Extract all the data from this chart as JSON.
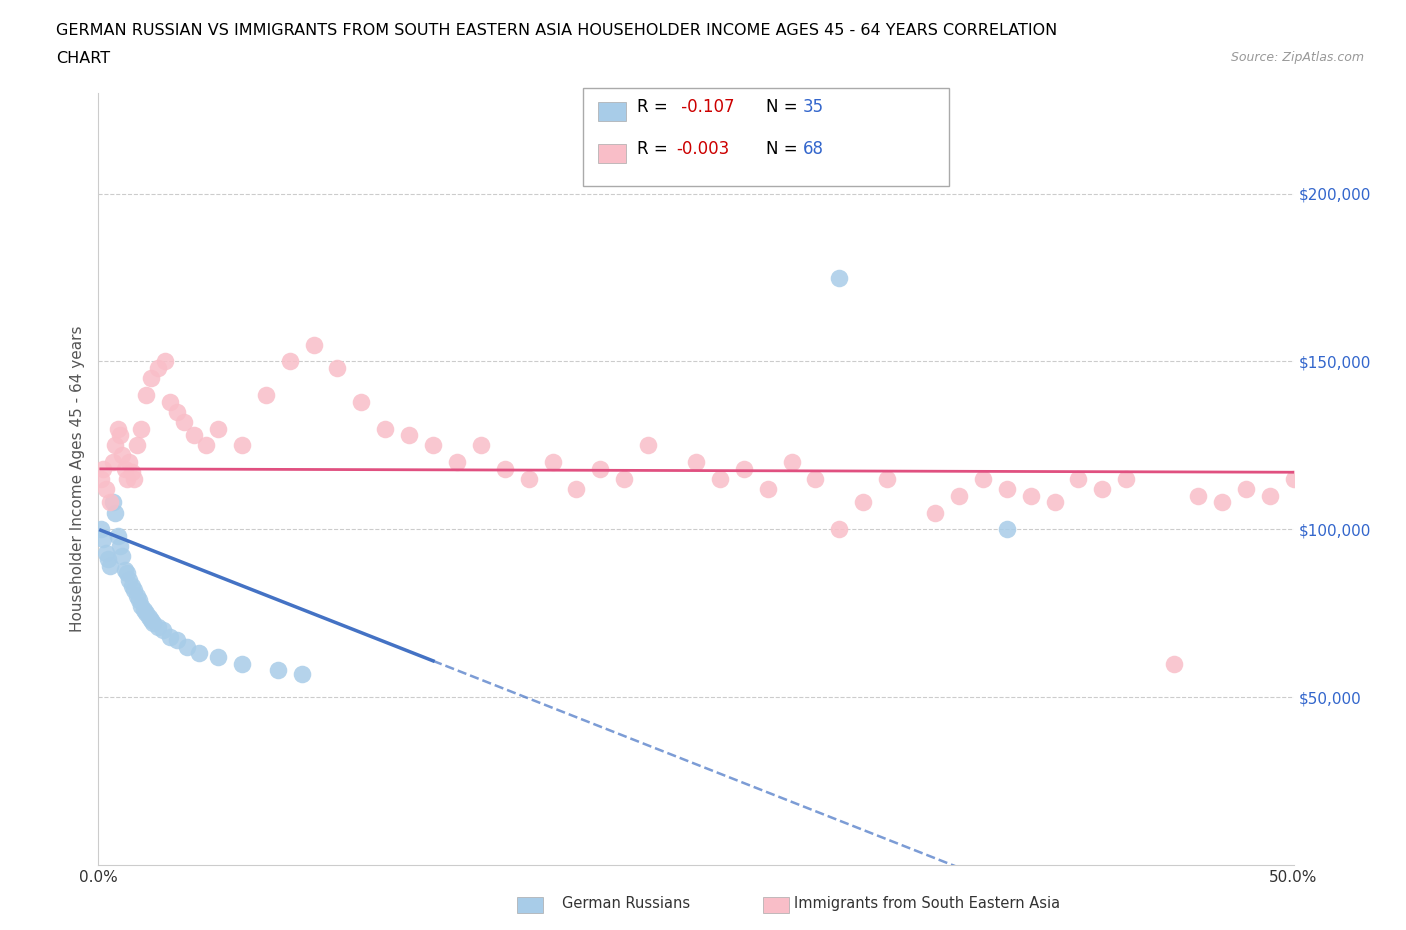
{
  "title_line1": "GERMAN RUSSIAN VS IMMIGRANTS FROM SOUTH EASTERN ASIA HOUSEHOLDER INCOME AGES 45 - 64 YEARS CORRELATION",
  "title_line2": "CHART",
  "source_text": "Source: ZipAtlas.com",
  "ylabel": "Householder Income Ages 45 - 64 years",
  "xlim": [
    0.0,
    0.5
  ],
  "ylim": [
    0,
    230000
  ],
  "yticks": [
    50000,
    100000,
    150000,
    200000
  ],
  "ytick_labels": [
    "$50,000",
    "$100,000",
    "$150,000",
    "$200,000"
  ],
  "xticks": [
    0.0,
    0.1,
    0.2,
    0.3,
    0.4,
    0.5
  ],
  "xtick_labels": [
    "0.0%",
    "",
    "",
    "",
    "",
    "50.0%"
  ],
  "color_blue": "#a8cce8",
  "color_pink": "#f9bec8",
  "color_blue_line": "#4472c4",
  "color_pink_line": "#e05080",
  "grid_color": "#cccccc",
  "blue_x": [
    0.001,
    0.002,
    0.003,
    0.004,
    0.005,
    0.006,
    0.007,
    0.008,
    0.009,
    0.01,
    0.011,
    0.012,
    0.013,
    0.014,
    0.015,
    0.016,
    0.017,
    0.018,
    0.019,
    0.02,
    0.021,
    0.022,
    0.023,
    0.025,
    0.027,
    0.03,
    0.033,
    0.037,
    0.042,
    0.05,
    0.06,
    0.075,
    0.085,
    0.31,
    0.38
  ],
  "blue_y": [
    100000,
    97000,
    93000,
    91000,
    89000,
    108000,
    105000,
    98000,
    95000,
    92000,
    88000,
    87000,
    85000,
    83000,
    82000,
    80000,
    79000,
    77000,
    76000,
    75000,
    74000,
    73000,
    72000,
    71000,
    70000,
    68000,
    67000,
    65000,
    63000,
    62000,
    60000,
    58000,
    57000,
    175000,
    100000
  ],
  "pink_x": [
    0.001,
    0.002,
    0.003,
    0.005,
    0.006,
    0.007,
    0.008,
    0.009,
    0.01,
    0.011,
    0.012,
    0.013,
    0.014,
    0.015,
    0.016,
    0.018,
    0.02,
    0.022,
    0.025,
    0.028,
    0.03,
    0.033,
    0.036,
    0.04,
    0.045,
    0.05,
    0.06,
    0.07,
    0.08,
    0.09,
    0.1,
    0.11,
    0.12,
    0.13,
    0.14,
    0.15,
    0.16,
    0.17,
    0.18,
    0.19,
    0.2,
    0.21,
    0.22,
    0.23,
    0.25,
    0.26,
    0.27,
    0.28,
    0.29,
    0.3,
    0.31,
    0.32,
    0.33,
    0.35,
    0.36,
    0.37,
    0.38,
    0.39,
    0.4,
    0.41,
    0.42,
    0.43,
    0.45,
    0.46,
    0.47,
    0.48,
    0.49,
    0.5
  ],
  "pink_y": [
    115000,
    118000,
    112000,
    108000,
    120000,
    125000,
    130000,
    128000,
    122000,
    118000,
    115000,
    120000,
    117000,
    115000,
    125000,
    130000,
    140000,
    145000,
    148000,
    150000,
    138000,
    135000,
    132000,
    128000,
    125000,
    130000,
    125000,
    140000,
    150000,
    155000,
    148000,
    138000,
    130000,
    128000,
    125000,
    120000,
    125000,
    118000,
    115000,
    120000,
    112000,
    118000,
    115000,
    125000,
    120000,
    115000,
    118000,
    112000,
    120000,
    115000,
    100000,
    108000,
    115000,
    105000,
    110000,
    115000,
    112000,
    110000,
    108000,
    115000,
    112000,
    115000,
    60000,
    110000,
    108000,
    112000,
    110000,
    115000
  ],
  "blue_trend": [
    0.001,
    0.14
  ],
  "blue_trend_dash": [
    0.14,
    0.5
  ],
  "pink_trend": [
    0.001,
    0.5
  ],
  "pink_trend_intercept": 118000,
  "pink_trend_slope": -2000,
  "blue_trend_intercept": 100000,
  "blue_trend_slope": -280000
}
